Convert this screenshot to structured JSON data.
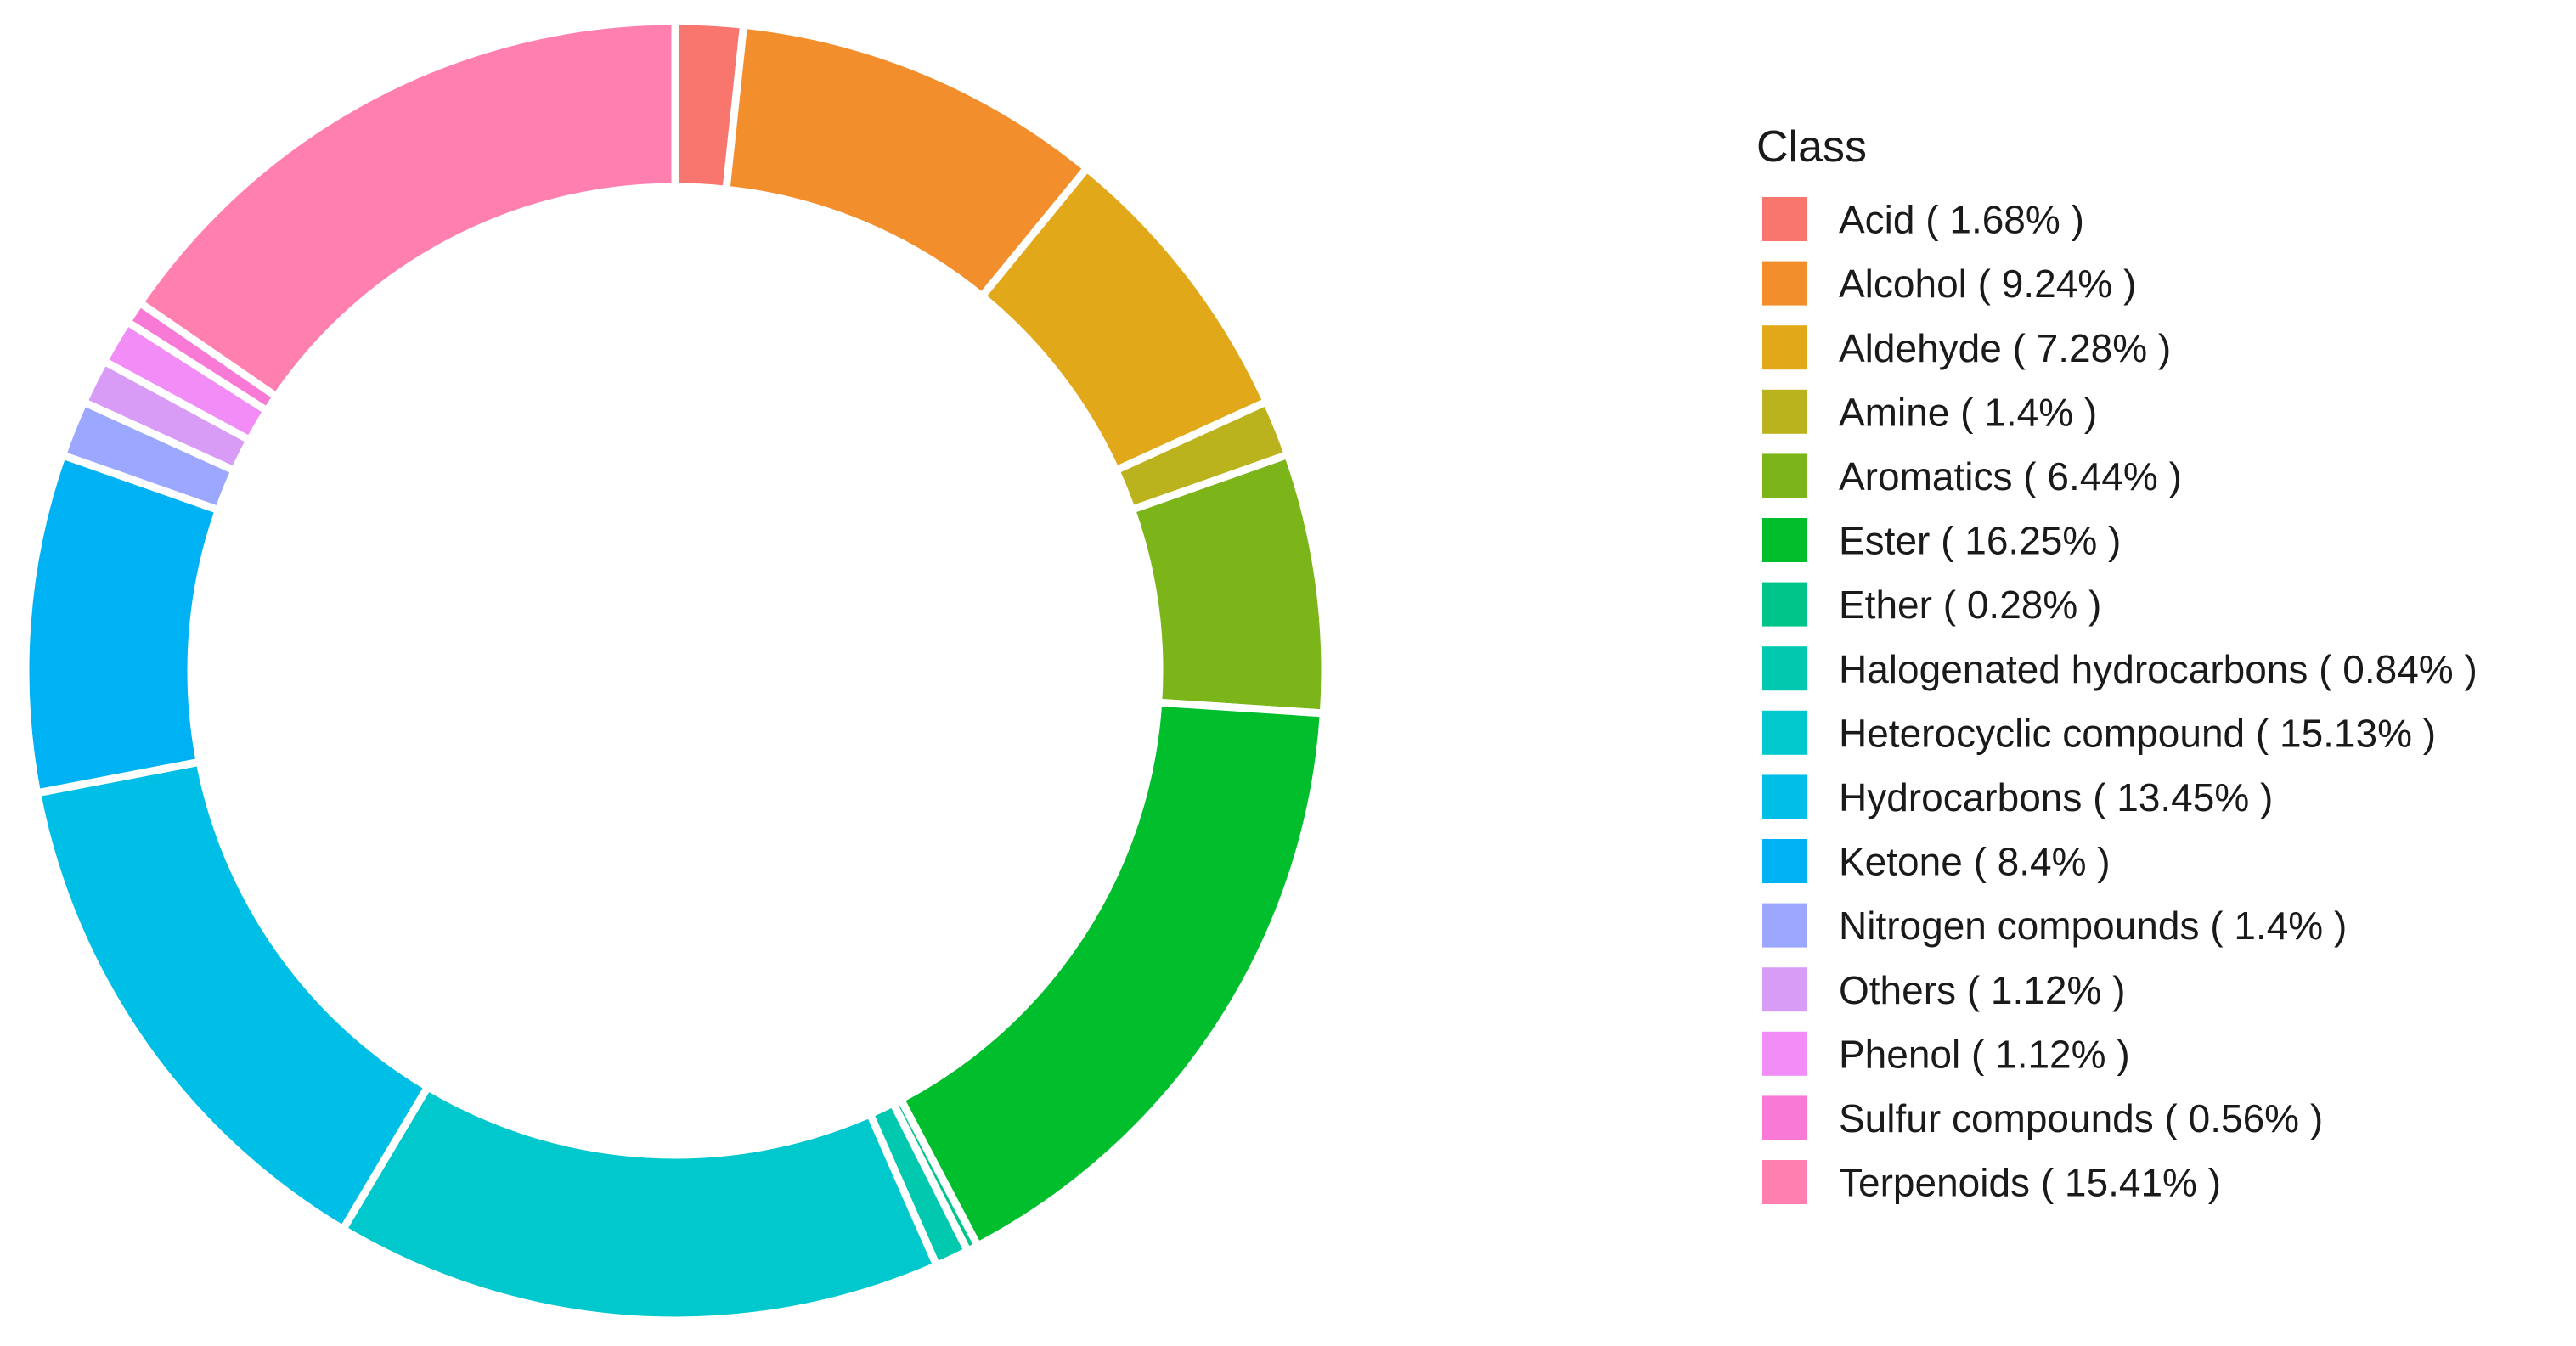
{
  "chart_data": {
    "type": "pie",
    "style": "donut",
    "legend_title": "Class",
    "legend_position": "right",
    "categories": [
      "Acid",
      "Alcohol",
      "Aldehyde",
      "Amine",
      "Aromatics",
      "Ester",
      "Ether",
      "Halogenated hydrocarbons",
      "Heterocyclic compound",
      "Hydrocarbons",
      "Ketone",
      "Nitrogen compounds",
      "Others",
      "Phenol",
      "Sulfur compounds",
      "Terpenoids"
    ],
    "values": [
      1.68,
      9.24,
      7.28,
      1.4,
      6.44,
      16.25,
      0.28,
      0.84,
      15.13,
      13.45,
      8.4,
      1.4,
      1.12,
      1.12,
      0.56,
      15.41
    ],
    "labels": [
      "Acid ( 1.68% )",
      "Alcohol ( 9.24% )",
      "Aldehyde ( 7.28% )",
      "Amine ( 1.4% )",
      "Aromatics ( 6.44% )",
      "Ester ( 16.25% )",
      "Ether ( 0.28% )",
      "Halogenated hydrocarbons ( 0.84% )",
      "Heterocyclic compound ( 15.13% )",
      "Hydrocarbons ( 13.45% )",
      "Ketone ( 8.4% )",
      "Nitrogen compounds ( 1.4% )",
      "Others ( 1.12% )",
      "Phenol ( 1.12% )",
      "Sulfur compounds ( 0.56% )",
      "Terpenoids ( 15.41% )"
    ],
    "colors": [
      "#F8766D",
      "#F28E2B",
      "#E1A91A",
      "#BBB31E",
      "#7CB51A",
      "#00BE2C",
      "#00C58B",
      "#00C9B0",
      "#00C8CC",
      "#00BFE6",
      "#00B2F3",
      "#9CA7FF",
      "#D89CF6",
      "#F28CF7",
      "#F879D6",
      "#FF7FAF"
    ],
    "start_angle_deg": 0,
    "direction": "clockwise"
  }
}
